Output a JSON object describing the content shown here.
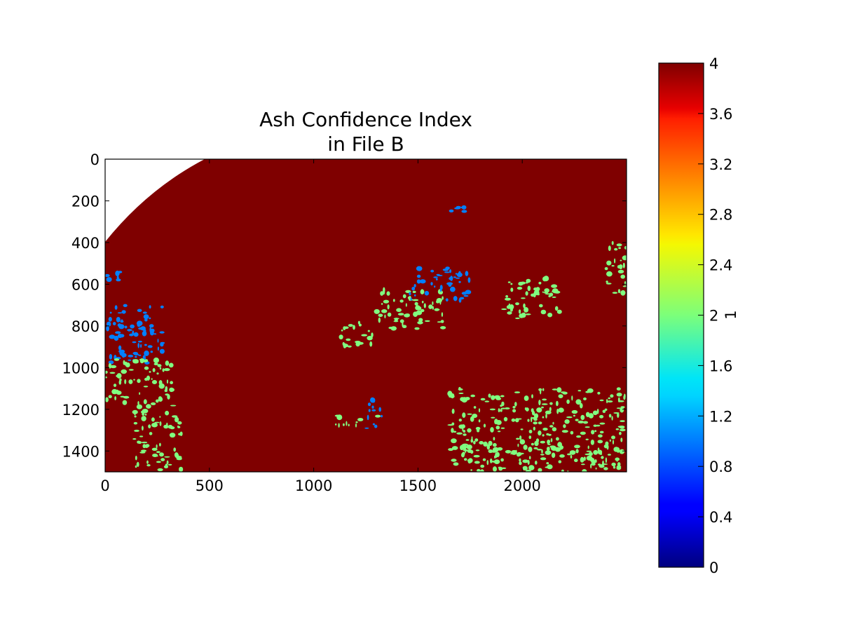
{
  "chart_data": {
    "type": "heatmap",
    "title_lines": [
      "Ash Confidence Index",
      "in File B"
    ],
    "xlabel": "",
    "ylabel": "",
    "x_ticks": [
      "0",
      "500",
      "1000",
      "1500",
      "2000"
    ],
    "y_ticks": [
      "0",
      "200",
      "400",
      "600",
      "800",
      "1000",
      "1200",
      "1400"
    ],
    "xlim": [
      0,
      2500
    ],
    "ylim": [
      1500,
      0
    ],
    "colorbar": {
      "label": "1",
      "range": [
        0,
        4
      ],
      "ticks": [
        "0",
        "0.4",
        "0.8",
        "1.2",
        "1.6",
        "2",
        "2.4",
        "2.8",
        "3.2",
        "3.6",
        "4"
      ]
    },
    "dominant_value": 4,
    "features": [
      {
        "value": 1,
        "kind": "region",
        "x": 0,
        "y": 530,
        "w": 90,
        "h": 60
      },
      {
        "value": 1,
        "kind": "region",
        "x": 0,
        "y": 700,
        "w": 280,
        "h": 280
      },
      {
        "value": 2,
        "kind": "region",
        "x": 0,
        "y": 960,
        "w": 330,
        "h": 230
      },
      {
        "value": 2,
        "kind": "region",
        "x": 140,
        "y": 1200,
        "w": 230,
        "h": 300
      },
      {
        "value": 2,
        "kind": "region",
        "x": 1300,
        "y": 620,
        "w": 330,
        "h": 200
      },
      {
        "value": 1,
        "kind": "region",
        "x": 1450,
        "y": 520,
        "w": 300,
        "h": 160
      },
      {
        "value": 1,
        "kind": "region",
        "x": 1650,
        "y": 230,
        "w": 90,
        "h": 30
      },
      {
        "value": 2,
        "kind": "region",
        "x": 1900,
        "y": 570,
        "w": 280,
        "h": 200
      },
      {
        "value": 2,
        "kind": "region",
        "x": 2400,
        "y": 400,
        "w": 100,
        "h": 250
      },
      {
        "value": 2,
        "kind": "region",
        "x": 1650,
        "y": 1100,
        "w": 850,
        "h": 400
      },
      {
        "value": 2,
        "kind": "region",
        "x": 1100,
        "y": 1230,
        "w": 230,
        "h": 50
      },
      {
        "value": 2,
        "kind": "region",
        "x": 1120,
        "y": 780,
        "w": 180,
        "h": 120
      },
      {
        "value": 1,
        "kind": "region",
        "x": 1250,
        "y": 1150,
        "w": 80,
        "h": 150
      }
    ]
  }
}
